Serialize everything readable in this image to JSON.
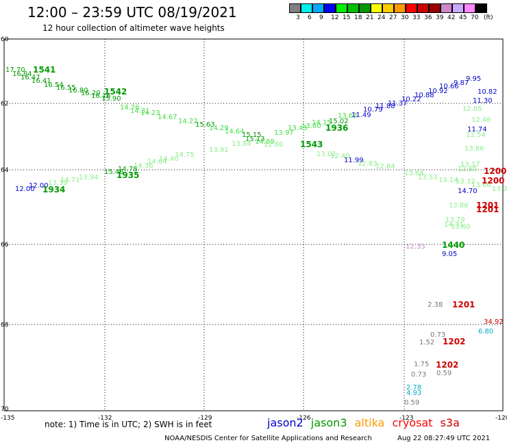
{
  "header": {
    "title": "12:00 – 23:59 UTC 08/19/2021",
    "subtitle": "12 hour collection of altimeter wave heights"
  },
  "colorbar": {
    "unit": "(ft)",
    "items": [
      {
        "label": "3",
        "color": "#808080"
      },
      {
        "label": "6",
        "color": "#00eeee"
      },
      {
        "label": "9",
        "color": "#00aaff"
      },
      {
        "label": "12",
        "color": "#0000ff"
      },
      {
        "label": "15",
        "color": "#00ee00"
      },
      {
        "label": "18",
        "color": "#00c000"
      },
      {
        "label": "21",
        "color": "#009900"
      },
      {
        "label": "24",
        "color": "#ffff00"
      },
      {
        "label": "27",
        "color": "#ffcc00"
      },
      {
        "label": "30",
        "color": "#ff9900"
      },
      {
        "label": "33",
        "color": "#ff0000"
      },
      {
        "label": "36",
        "color": "#cc0000"
      },
      {
        "label": "39",
        "color": "#990000"
      },
      {
        "label": "42",
        "color": "#cc88cc"
      },
      {
        "label": "45",
        "color": "#ccaaff"
      },
      {
        "label": "70",
        "color": "#ff88ff"
      },
      {
        "label": "",
        "color": "#000000"
      }
    ]
  },
  "axes": {
    "lon_ticks": [
      "-135",
      "-132",
      "-129",
      "-126",
      "-123",
      "-120"
    ],
    "lat_ticks": [
      "60",
      "62",
      "64",
      "66",
      "68",
      "70"
    ]
  },
  "footer": {
    "note": "note:  1) Time is in UTC;  2) SWH is in feet",
    "credit": "NOAA/NESDIS Center for Satellite Applications and Research",
    "timestamp": "Aug 22 08:27:49 UTC 2021"
  },
  "legend": [
    {
      "name": "jason2",
      "color": "#0000cc"
    },
    {
      "name": "jason3",
      "color": "#009900"
    },
    {
      "name": "altika",
      "color": "#ff9900"
    },
    {
      "name": "cryosat",
      "color": "#ff0000"
    },
    {
      "name": "s3a",
      "color": "#cc0000"
    }
  ],
  "colors": {
    "jason2": "#0000cc",
    "jason3_dark": "#009900",
    "jason3_light": "#44dd44",
    "pale_green": "#88ee88",
    "cryosat": "#cc0000",
    "gray": "#777777",
    "cyan": "#00aacc",
    "violet": "#cc88cc"
  },
  "observations": [
    {
      "text": "17.70",
      "c": "jason3_dark"
    },
    {
      "text": "16.84",
      "c": "jason3_dark"
    },
    {
      "text": "16.47",
      "c": "jason3_dark"
    },
    {
      "text": "16.41",
      "c": "jason3_dark"
    },
    {
      "text": "16.54",
      "c": "jason3_dark"
    },
    {
      "text": "16.55",
      "c": "jason3_dark"
    },
    {
      "text": "16.80",
      "c": "jason3_dark"
    },
    {
      "text": "16.20",
      "c": "jason3_dark"
    },
    {
      "text": "16.16",
      "c": "jason3_dark"
    },
    {
      "text": "15.90",
      "c": "jason3_dark"
    },
    {
      "text": "14.76",
      "c": "jason3_light"
    },
    {
      "text": "14.31",
      "c": "jason3_light"
    },
    {
      "text": "14.23",
      "c": "jason3_light"
    },
    {
      "text": "14.67",
      "c": "jason3_light"
    },
    {
      "text": "14.22",
      "c": "jason3_light"
    },
    {
      "text": "15.63",
      "c": "jason3_dark"
    },
    {
      "text": "14.29",
      "c": "jason3_light"
    },
    {
      "text": "14.64",
      "c": "jason3_light"
    },
    {
      "text": "15.15",
      "c": "jason3_dark"
    },
    {
      "text": "15.13",
      "c": "jason3_dark"
    },
    {
      "text": "14.89",
      "c": "jason3_light"
    },
    {
      "text": "13.97",
      "c": "jason3_light"
    },
    {
      "text": "13.43",
      "c": "jason3_light"
    },
    {
      "text": "13.60",
      "c": "jason3_light"
    },
    {
      "text": "14.15",
      "c": "jason3_light"
    },
    {
      "text": "15.02",
      "c": "jason3_dark"
    },
    {
      "text": "13.63",
      "c": "jason3_light"
    },
    {
      "text": "11.49",
      "c": "jason2"
    },
    {
      "text": "10.79",
      "c": "jason2"
    },
    {
      "text": "11.88",
      "c": "jason2"
    },
    {
      "text": "11.37",
      "c": "jason2"
    },
    {
      "text": "10.22",
      "c": "jason2"
    },
    {
      "text": "10.88",
      "c": "jason2"
    },
    {
      "text": "10.92",
      "c": "jason2"
    },
    {
      "text": "10.66",
      "c": "jason2"
    },
    {
      "text": "9.87",
      "c": "jason2"
    },
    {
      "text": "9.95",
      "c": "jason2"
    },
    {
      "text": "10.82",
      "c": "jason2"
    },
    {
      "text": "11.30",
      "c": "jason2"
    },
    {
      "text": "11.74",
      "c": "jason2"
    },
    {
      "text": "14.70",
      "c": "jason2"
    },
    {
      "text": "9.05",
      "c": "jason2"
    },
    {
      "text": "12.00",
      "c": "jason2"
    },
    {
      "text": "12.00",
      "c": "jason2"
    },
    {
      "text": "11.99",
      "c": "jason2"
    },
    {
      "text": "12.80",
      "c": "pale_green"
    },
    {
      "text": "13.01",
      "c": "pale_green"
    },
    {
      "text": "12.40",
      "c": "pale_green"
    },
    {
      "text": "12.83",
      "c": "pale_green"
    },
    {
      "text": "12.84",
      "c": "pale_green"
    },
    {
      "text": "13.64",
      "c": "pale_green"
    },
    {
      "text": "13.53",
      "c": "pale_green"
    },
    {
      "text": "13.14",
      "c": "pale_green"
    },
    {
      "text": "13.86",
      "c": "pale_green"
    },
    {
      "text": "13.79",
      "c": "pale_green"
    },
    {
      "text": "14.31",
      "c": "pale_green"
    },
    {
      "text": "12.46",
      "c": "pale_green"
    },
    {
      "text": "12.54",
      "c": "pale_green"
    },
    {
      "text": "13.86",
      "c": "pale_green"
    },
    {
      "text": "13.17",
      "c": "pale_green"
    },
    {
      "text": "12.85",
      "c": "pale_green"
    },
    {
      "text": "13.33",
      "c": "pale_green"
    },
    {
      "text": "12.05",
      "c": "pale_green"
    },
    {
      "text": "13.32",
      "c": "pale_green"
    },
    {
      "text": "13.66",
      "c": "pale_green"
    },
    {
      "text": "15.46",
      "c": "jason3_dark"
    },
    {
      "text": "14.78",
      "c": "jason3_dark"
    },
    {
      "text": "14.36",
      "c": "pale_green"
    },
    {
      "text": "14.64",
      "c": "pale_green"
    },
    {
      "text": "14.40",
      "c": "pale_green"
    },
    {
      "text": "14.75",
      "c": "pale_green"
    },
    {
      "text": "13.91",
      "c": "pale_green"
    },
    {
      "text": "13.84",
      "c": "pale_green"
    },
    {
      "text": "13.94",
      "c": "pale_green"
    },
    {
      "text": "14.71",
      "c": "pale_green"
    },
    {
      "text": "13.39",
      "c": "pale_green"
    },
    {
      "text": "13.60",
      "c": "pale_green"
    },
    {
      "text": "2.38",
      "c": "gray"
    },
    {
      "text": "0.73",
      "c": "gray"
    },
    {
      "text": "1.52",
      "c": "gray"
    },
    {
      "text": "1.75",
      "c": "gray"
    },
    {
      "text": "0.73",
      "c": "gray"
    },
    {
      "text": "0.59",
      "c": "gray"
    },
    {
      "text": "0.59",
      "c": "gray"
    },
    {
      "text": "2.78",
      "c": "cyan"
    },
    {
      "text": "4.93",
      "c": "cyan"
    },
    {
      "text": "6.80",
      "c": "cyan"
    },
    {
      "text": "34.92",
      "c": "cryosat"
    },
    {
      "text": "12.33",
      "c": "violet"
    }
  ],
  "pass_labels": [
    {
      "text": "1541",
      "c": "jason3_dark"
    },
    {
      "text": "1542",
      "c": "jason3_dark"
    },
    {
      "text": "1543",
      "c": "jason3_dark"
    },
    {
      "text": "1936",
      "c": "jason3_dark"
    },
    {
      "text": "1935",
      "c": "jason3_dark"
    },
    {
      "text": "1934",
      "c": "jason3_dark"
    },
    {
      "text": "1440",
      "c": "jason3_dark"
    },
    {
      "text": "1200",
      "c": "cryosat"
    },
    {
      "text": "1200",
      "c": "cryosat"
    },
    {
      "text": "1201",
      "c": "cryosat"
    },
    {
      "text": "1201",
      "c": "cryosat"
    },
    {
      "text": "1201",
      "c": "cryosat"
    },
    {
      "text": "1202",
      "c": "cryosat"
    },
    {
      "text": "1202",
      "c": "cryosat"
    }
  ]
}
